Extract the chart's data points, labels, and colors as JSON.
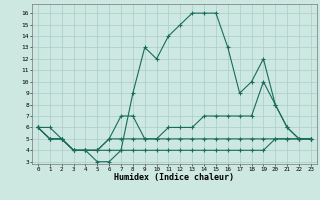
{
  "xlabel": "Humidex (Indice chaleur)",
  "x_ticks": [
    0,
    1,
    2,
    3,
    4,
    5,
    6,
    7,
    8,
    9,
    10,
    11,
    12,
    13,
    14,
    15,
    16,
    17,
    18,
    19,
    20,
    21,
    22,
    23
  ],
  "y_ticks": [
    3,
    4,
    5,
    6,
    7,
    8,
    9,
    10,
    11,
    12,
    13,
    14,
    15,
    16
  ],
  "ylim": [
    2.8,
    16.8
  ],
  "xlim": [
    -0.5,
    23.5
  ],
  "bg_color": "#cce8e0",
  "grid_color": "#aacccc",
  "line_color": "#1a6b5a",
  "series": {
    "line1": [
      6,
      6,
      5,
      4,
      4,
      3,
      3,
      4,
      9,
      13,
      12,
      14,
      15,
      16,
      16,
      16,
      13,
      9,
      10,
      12,
      8,
      6,
      5,
      5
    ],
    "line2": [
      6,
      5,
      5,
      4,
      4,
      4,
      5,
      7,
      7,
      5,
      5,
      6,
      6,
      6,
      7,
      7,
      7,
      7,
      7,
      10,
      8,
      6,
      5,
      5
    ],
    "line3": [
      6,
      5,
      5,
      4,
      4,
      4,
      5,
      5,
      5,
      5,
      5,
      5,
      5,
      5,
      5,
      5,
      5,
      5,
      5,
      5,
      5,
      5,
      5,
      5
    ],
    "line4": [
      6,
      5,
      5,
      4,
      4,
      4,
      4,
      4,
      4,
      4,
      4,
      4,
      4,
      4,
      4,
      4,
      4,
      4,
      4,
      4,
      5,
      5,
      5,
      5
    ]
  }
}
